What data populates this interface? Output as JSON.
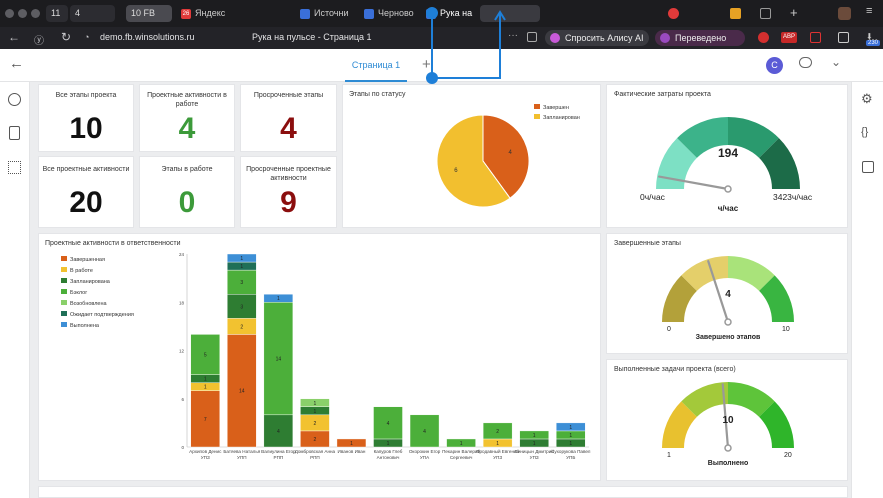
{
  "browser": {
    "tabs": [
      {
        "label": "11",
        "icon": "tab-group-icon"
      },
      {
        "label": "4",
        "icon": "tab-group-icon"
      },
      {
        "label": "10 FB",
        "icon": "tab-group-icon",
        "active": true
      },
      {
        "label": "26",
        "icon": "badge-icon"
      },
      {
        "label": "Яндекс",
        "icon": "yandex-icon"
      },
      {
        "label": "Источни",
        "icon": "source-icon"
      },
      {
        "label": "Черново",
        "icon": "draft-icon"
      },
      {
        "label": "Рука на",
        "icon": "dashboard-icon"
      }
    ],
    "address": "demo.fb.winsolutions.ru",
    "page_title": "Рука на пульсе - Страница 1",
    "alice": "Спросить Алису AI",
    "translated": "Переведено",
    "badge_count": "230",
    "ext_abp": "ABP"
  },
  "report": {
    "page_tab": "Страница 1",
    "avatar": "C"
  },
  "kpis": [
    {
      "label": "Все этапы проекта",
      "value": "10",
      "color": "#111111"
    },
    {
      "label": "Проектные активности в работе",
      "value": "4",
      "color": "#3c9a3a"
    },
    {
      "label": "Просроченные этапы",
      "value": "4",
      "color": "#8b0e0e"
    },
    {
      "label": "Все проектные активности",
      "value": "20",
      "color": "#111111"
    },
    {
      "label": "Этапы в работе",
      "value": "0",
      "color": "#3c9a3a"
    },
    {
      "label": "Просроченные проектные активности",
      "value": "9",
      "color": "#8b0e0e"
    }
  ],
  "pie": {
    "title": "Этапы по статусу",
    "legend": [
      {
        "name": "Завершен",
        "color": "#d9601a"
      },
      {
        "name": "Запланирован",
        "color": "#f2bf2f"
      }
    ],
    "chart_data": {
      "type": "pie",
      "categories": [
        "Завершен",
        "Запланирован"
      ],
      "values": [
        4,
        6
      ]
    }
  },
  "gauges": {
    "cost": {
      "title": "Фактические затраты проекта",
      "value": "194",
      "min": "0ч/час",
      "max": "3423ч/час",
      "caption": "ч/час",
      "value_num": 194,
      "min_num": 0,
      "max_num": 3423
    },
    "stages": {
      "title": "Завершенные этапы",
      "value": "4",
      "min": "0",
      "max": "10",
      "caption": "Завершено этапов",
      "value_num": 4,
      "min_num": 0,
      "max_num": 10
    },
    "tasks": {
      "title": "Выполненные задачи проекта (всего)",
      "value": "10",
      "min": "1",
      "max": "20",
      "caption": "Выполнено",
      "value_num": 10,
      "min_num": 1,
      "max_num": 20
    }
  },
  "bar": {
    "title": "Проектные активности в ответственности",
    "chart_data": {
      "type": "bar",
      "stacked": true,
      "ylim": [
        0,
        24
      ],
      "yticks": [
        "0",
        "6",
        "12",
        "18",
        "24"
      ],
      "categories": [
        "Архипов Денис УПЗ",
        "Батяева Наталья УПП",
        "Валиулина Егор РПП",
        "Домбровская Анна РПП",
        "Иванов Иван",
        "Капуров Глеб Антонович",
        "Окорокин Егор УПА",
        "Пекарин Валерий Сергеевич",
        "Продавный Евгений УПЗ",
        "Синицын Дмитрий УПЗ",
        "Сухорукова Павел УПБ"
      ],
      "series": [
        {
          "name": "Завершенная",
          "color": "#d9601a",
          "values": [
            7,
            14,
            0,
            2,
            1,
            0,
            0,
            0,
            0,
            0,
            0
          ]
        },
        {
          "name": "В работе",
          "color": "#f2c230",
          "values": [
            1,
            2,
            0,
            2,
            0,
            0,
            0,
            0,
            1,
            0,
            0
          ]
        },
        {
          "name": "Запланирована",
          "color": "#2e7d32",
          "values": [
            1,
            3,
            4,
            1,
            0,
            1,
            0,
            0,
            0,
            1,
            1
          ]
        },
        {
          "name": "Бэклог",
          "color": "#4caf3a",
          "values": [
            5,
            3,
            14,
            0,
            0,
            4,
            4,
            1,
            2,
            1,
            1
          ]
        },
        {
          "name": "Возобновлена",
          "color": "#8ad06a",
          "values": [
            0,
            0,
            0,
            1,
            0,
            0,
            0,
            0,
            0,
            0,
            0
          ]
        },
        {
          "name": "Ожидает подтверждения",
          "color": "#1f6f57",
          "values": [
            0,
            1,
            0,
            0,
            0,
            0,
            0,
            0,
            0,
            0,
            0
          ]
        },
        {
          "name": "Выполнена",
          "color": "#3d8fd6",
          "values": [
            0,
            1,
            1,
            0,
            0,
            0,
            0,
            0,
            0,
            0,
            1
          ]
        }
      ]
    }
  },
  "colors": {
    "accent": "#2e8bd4",
    "header_bg": "#ffffff",
    "page_bg": "#ecedef"
  }
}
